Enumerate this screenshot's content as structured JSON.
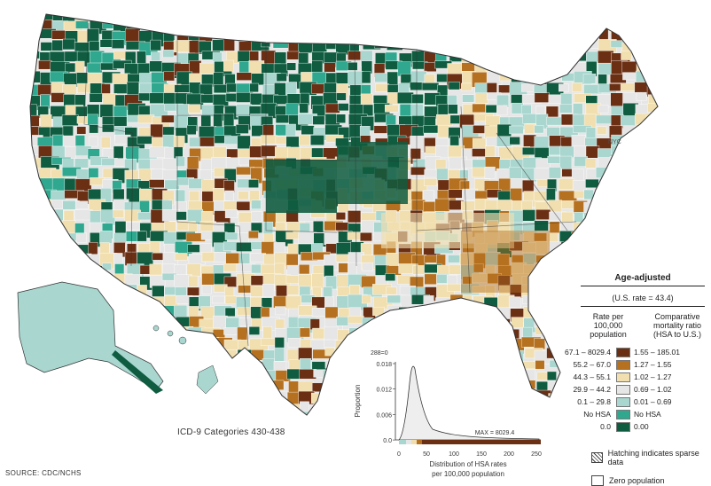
{
  "map": {
    "nyc_label": "NYC",
    "icd_label": "ICD-9 Categories 430-438",
    "source": "SOURCE: CDC/NCHS"
  },
  "colors": {
    "c1": "#6b2f14",
    "c2": "#b5711f",
    "c3": "#f1dfb0",
    "c4": "#e6e6e6",
    "c5": "#a9d6cf",
    "c6": "#2fa88f",
    "c7": "#0f5c40",
    "zero": "#ffffff"
  },
  "legend": {
    "title": "Age-adjusted",
    "us_rate": "(U.S. rate = 43.4)",
    "rate_head": "Rate per 100,000 population",
    "ratio_head": "Comparative mortality ratio (HSA to U.S.)",
    "rows": [
      {
        "rate": "67.1 – 8029.4",
        "ratio": "1.55 – 185.01",
        "color": "#6b2f14"
      },
      {
        "rate": "55.2 – 67.0",
        "ratio": "1.27 – 1.55",
        "color": "#b5711f"
      },
      {
        "rate": "44.3 – 55.1",
        "ratio": "1.02 – 1.27",
        "color": "#f1dfb0"
      },
      {
        "rate": "29.9 – 44.2",
        "ratio": "0.69 – 1.02",
        "color": "#e6e6e6"
      },
      {
        "rate": "0.1 – 29.8",
        "ratio": "0.01 – 0.69",
        "color": "#a9d6cf"
      },
      {
        "rate": "No HSA",
        "ratio": "No HSA",
        "color": "#2fa88f"
      },
      {
        "rate": "0.0",
        "ratio": "0.00",
        "color": "#0f5c40"
      }
    ],
    "hatch_label": "Hatching indicates sparse data",
    "zero_label": "Zero population"
  },
  "histogram": {
    "ylabel": "Proportion",
    "top_label": "288=0",
    "max_label": "MAX = 8029.4",
    "xlabel_line1": "Distribution of HSA rates",
    "xlabel_line2": "per 100,000 population",
    "yticks": [
      "0.018",
      "0.012",
      "0.006",
      "0.0"
    ],
    "xticks": [
      "0",
      "50",
      "100",
      "150",
      "200",
      "250"
    ]
  }
}
